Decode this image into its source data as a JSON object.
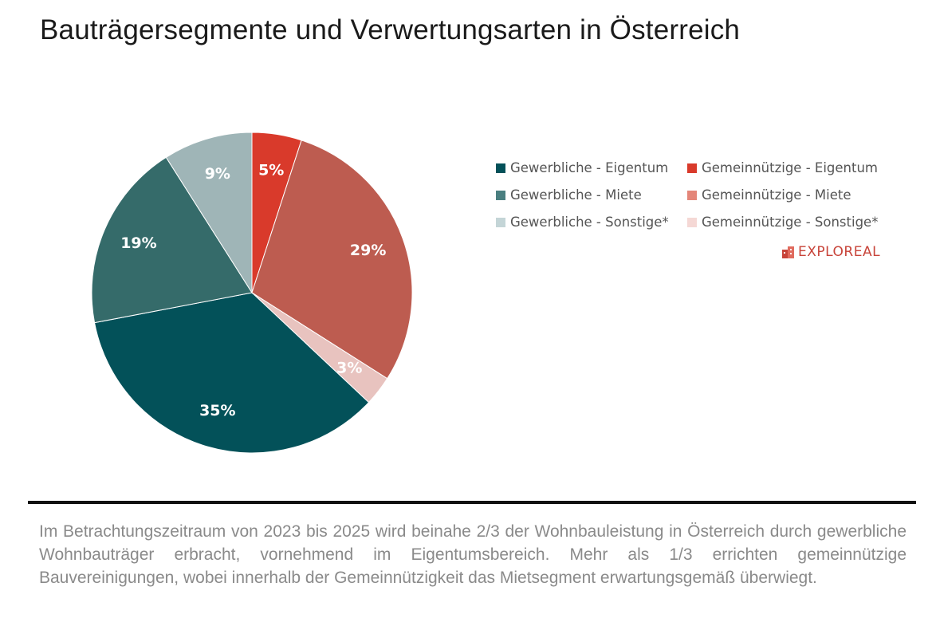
{
  "header": {
    "title": "Bauträgersegmente und Verwertungsarten in Österreich"
  },
  "chart_data": {
    "type": "pie",
    "title": "Bauträgersegmente und Verwertungsarten in Österreich",
    "slices": [
      {
        "name": "Gemeinnützige - Eigentum",
        "value": 5,
        "label": "5%",
        "color": "#d93a2b",
        "label_color": "#ffffff"
      },
      {
        "name": "Gemeinnützige - Miete",
        "value": 29,
        "label": "29%",
        "color": "#bd5c50",
        "label_color": "#ffffff"
      },
      {
        "name": "Gemeinnützige - Sonstige*",
        "value": 3,
        "label": "3%",
        "color": "#e8c3bf",
        "label_color": "#ffffff"
      },
      {
        "name": "Gewerbliche - Eigentum",
        "value": 35,
        "label": "35%",
        "color": "#035159",
        "label_color": "#ffffff"
      },
      {
        "name": "Gewerbliche - Miete",
        "value": 19,
        "label": "19%",
        "color": "#356b6a",
        "label_color": "#ffffff"
      },
      {
        "name": "Gewerbliche - Sonstige*",
        "value": 9,
        "label": "9%",
        "color": "#9fb5b7",
        "label_color": "#ffffff"
      }
    ],
    "legend": [
      {
        "name": "Gewerbliche - Eigentum",
        "color": "#035159"
      },
      {
        "name": "Gemeinnützige - Eigentum",
        "color": "#d93a2b"
      },
      {
        "name": "Gewerbliche - Miete",
        "color": "#4a7f80"
      },
      {
        "name": "Gemeinnützige - Miete",
        "color": "#e48679"
      },
      {
        "name": "Gewerbliche - Sonstige*",
        "color": "#c4d5d7"
      },
      {
        "name": "Gemeinnützige - Sonstige*",
        "color": "#f5d8d5"
      }
    ],
    "legend_position": "right"
  },
  "branding": {
    "name": "EXPLOREAL",
    "icon": "building-logo-icon",
    "color": "#c8443a"
  },
  "description": "Im Betrachtungszeitraum von 2023 bis 2025 wird beinahe 2/3 der Wohnbauleistung in Österreich durch gewerbliche Wohnbauträger erbracht, vornehmend im Eigentumsbereich. Mehr als 1/3 errichten gemeinnützige Bauvereinigungen, wobei innerhalb der Gemeinnützigkeit das Mietsegment erwartungsgemäß überwiegt."
}
